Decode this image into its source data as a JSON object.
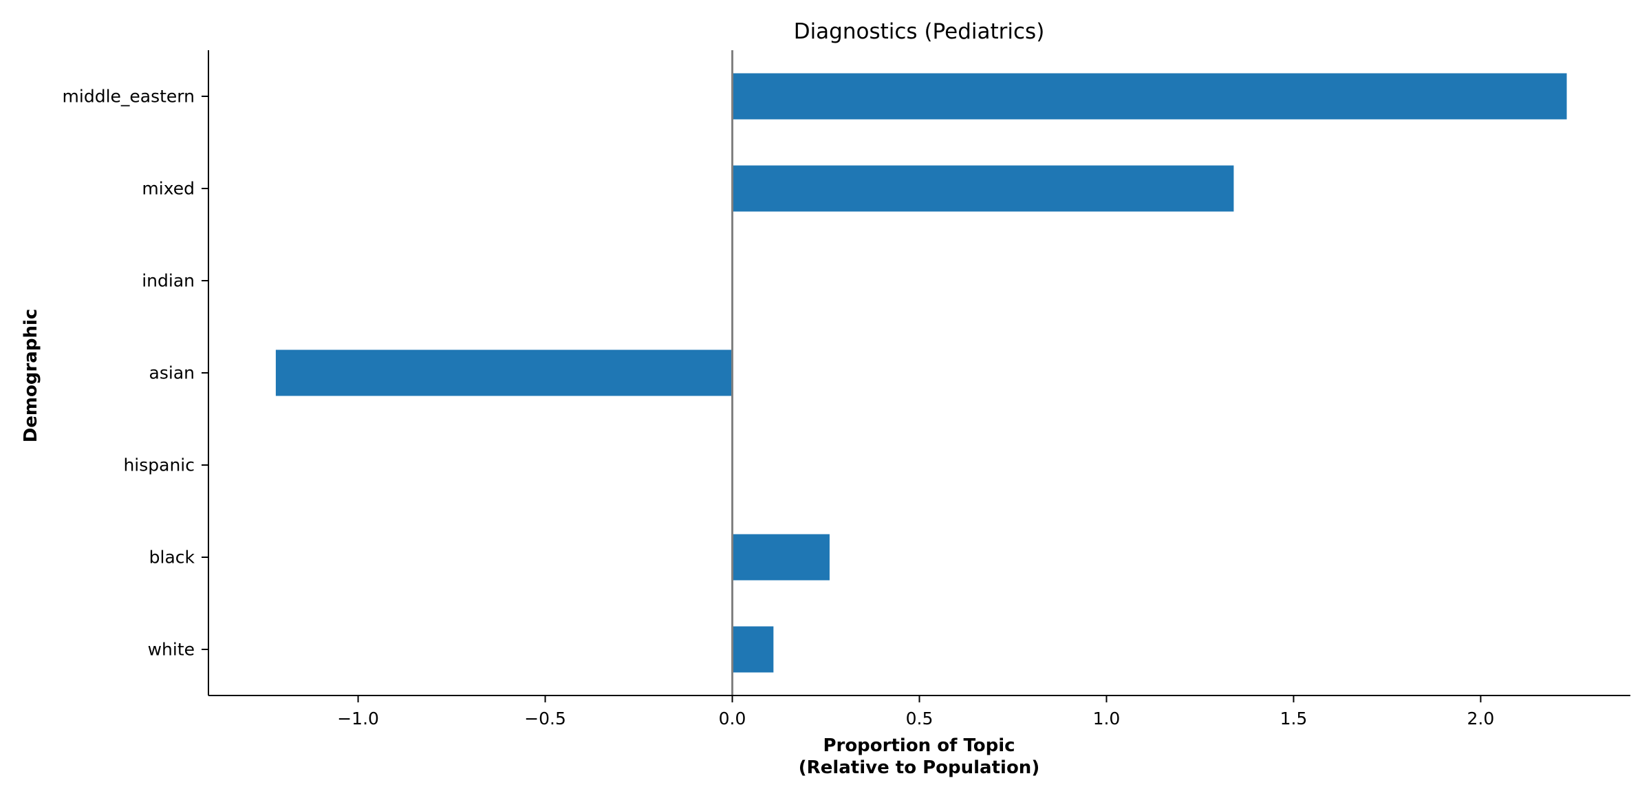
{
  "chart_data": {
    "type": "bar",
    "orientation": "horizontal",
    "title": "Diagnostics (Pediatrics)",
    "xlabel_lines": [
      "Proportion of Topic",
      "(Relative to Population)"
    ],
    "ylabel": "Demographic",
    "categories": [
      "middle_eastern",
      "mixed",
      "indian",
      "asian",
      "hispanic",
      "black",
      "white"
    ],
    "values": [
      2.23,
      1.34,
      0,
      -1.22,
      0,
      0.26,
      0.11
    ],
    "xlim": [
      -1.4,
      2.4
    ],
    "xticks": [
      -1.0,
      -0.5,
      0.0,
      0.5,
      1.0,
      1.5,
      2.0
    ],
    "xtick_labels": [
      "−1.0",
      "−0.5",
      "0.0",
      "0.5",
      "1.0",
      "1.5",
      "2.0"
    ],
    "reference_line": 0,
    "grid": false,
    "legend": "none",
    "bar_color": "#1f77b4",
    "reference_line_color": "#808080"
  }
}
